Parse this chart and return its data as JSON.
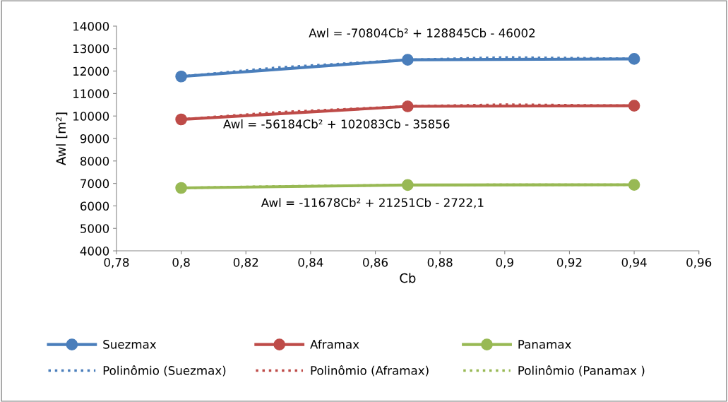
{
  "chart_data": {
    "type": "line",
    "xlabel": "Cb",
    "ylabel": "Awl [m²]",
    "x": [
      0.8,
      0.87,
      0.94
    ],
    "series": [
      {
        "name": "Suezmax",
        "color": "#4a7ebb",
        "values": [
          11760,
          12500,
          12540
        ],
        "marker": "circle",
        "line_style": "solid"
      },
      {
        "name": "Aframax",
        "color": "#be4b48",
        "values": [
          9850,
          10430,
          10460
        ],
        "marker": "circle",
        "line_style": "solid"
      },
      {
        "name": "Panamax",
        "color": "#98b954",
        "values": [
          6800,
          6930,
          6940
        ],
        "marker": "circle",
        "line_style": "solid"
      },
      {
        "name": "Polinômio (Suezmax)",
        "color": "#4a7ebb",
        "type": "line",
        "x": [
          0.8,
          0.83,
          0.87,
          0.9,
          0.94
        ],
        "values": [
          11760,
          12160,
          12500,
          12610,
          12550
        ],
        "marker": "none",
        "line_style": "dotted"
      },
      {
        "name": "Polinômio (Aframax)",
        "color": "#be4b48",
        "type": "line",
        "x": [
          0.8,
          0.83,
          0.87,
          0.9,
          0.94
        ],
        "values": [
          9850,
          10170,
          10430,
          10510,
          10460
        ],
        "marker": "none",
        "line_style": "dotted"
      },
      {
        "name": "Polinômio (Panamax )",
        "color": "#98b954",
        "type": "line",
        "x": [
          0.8,
          0.83,
          0.87,
          0.9,
          0.94
        ],
        "values": [
          6800,
          6870,
          6930,
          6940,
          6940
        ],
        "marker": "none",
        "line_style": "dotted"
      }
    ],
    "annotations": [
      "Awl = -70804Cb² + 128845Cb - 46002",
      "Awl = -56184Cb² + 102083Cb - 35856",
      "Awl = -11678Cb² + 21251Cb - 2722,1"
    ],
    "xlim": [
      0.78,
      0.96
    ],
    "xticks": [
      {
        "value": 0.78,
        "label": "0,78"
      },
      {
        "value": 0.8,
        "label": "0,8"
      },
      {
        "value": 0.82,
        "label": "0,82"
      },
      {
        "value": 0.84,
        "label": "0,84"
      },
      {
        "value": 0.86,
        "label": "0,86"
      },
      {
        "value": 0.88,
        "label": "0,88"
      },
      {
        "value": 0.9,
        "label": "0,9"
      },
      {
        "value": 0.92,
        "label": "0,92"
      },
      {
        "value": 0.94,
        "label": "0,94"
      },
      {
        "value": 0.96,
        "label": "0,96"
      }
    ],
    "ylim": [
      4000,
      14000
    ],
    "yticks": [
      4000,
      5000,
      6000,
      7000,
      8000,
      9000,
      10000,
      11000,
      12000,
      13000,
      14000
    ],
    "grid": false,
    "legend": "bottom"
  }
}
